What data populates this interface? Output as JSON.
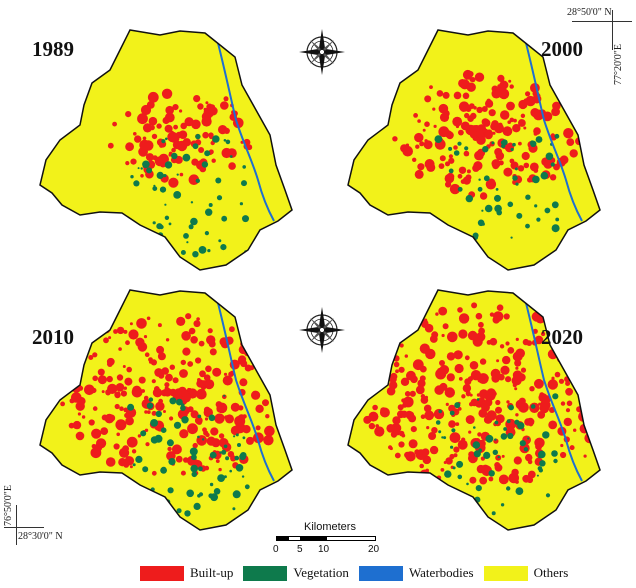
{
  "maps": [
    {
      "year": "1989",
      "builtup": 0.18,
      "vegetation": 0.12
    },
    {
      "year": "2000",
      "builtup": 0.32,
      "vegetation": 0.11
    },
    {
      "year": "2010",
      "builtup": 0.5,
      "vegetation": 0.14
    },
    {
      "year": "2020",
      "builtup": 0.58,
      "vegetation": 0.12
    }
  ],
  "coordinates": {
    "top_right_lat": "28°50'0\" N",
    "top_right_lon": "77°20'0\"E",
    "bottom_left_lon": "76°50'0\"E",
    "bottom_left_lat": "28°30'0\" N"
  },
  "scale": {
    "title": "Kilometers",
    "ticks": [
      "0",
      "5",
      "10",
      "20"
    ]
  },
  "legend": [
    {
      "label": "Built-up",
      "color": "#ee1c1c"
    },
    {
      "label": "Vegetation",
      "color": "#0e7a4c"
    },
    {
      "label": "Waterbodies",
      "color": "#1e6fd0"
    },
    {
      "label": "Others",
      "color": "#f2f21a"
    }
  ],
  "icons": [
    "compass-rose-icon"
  ]
}
